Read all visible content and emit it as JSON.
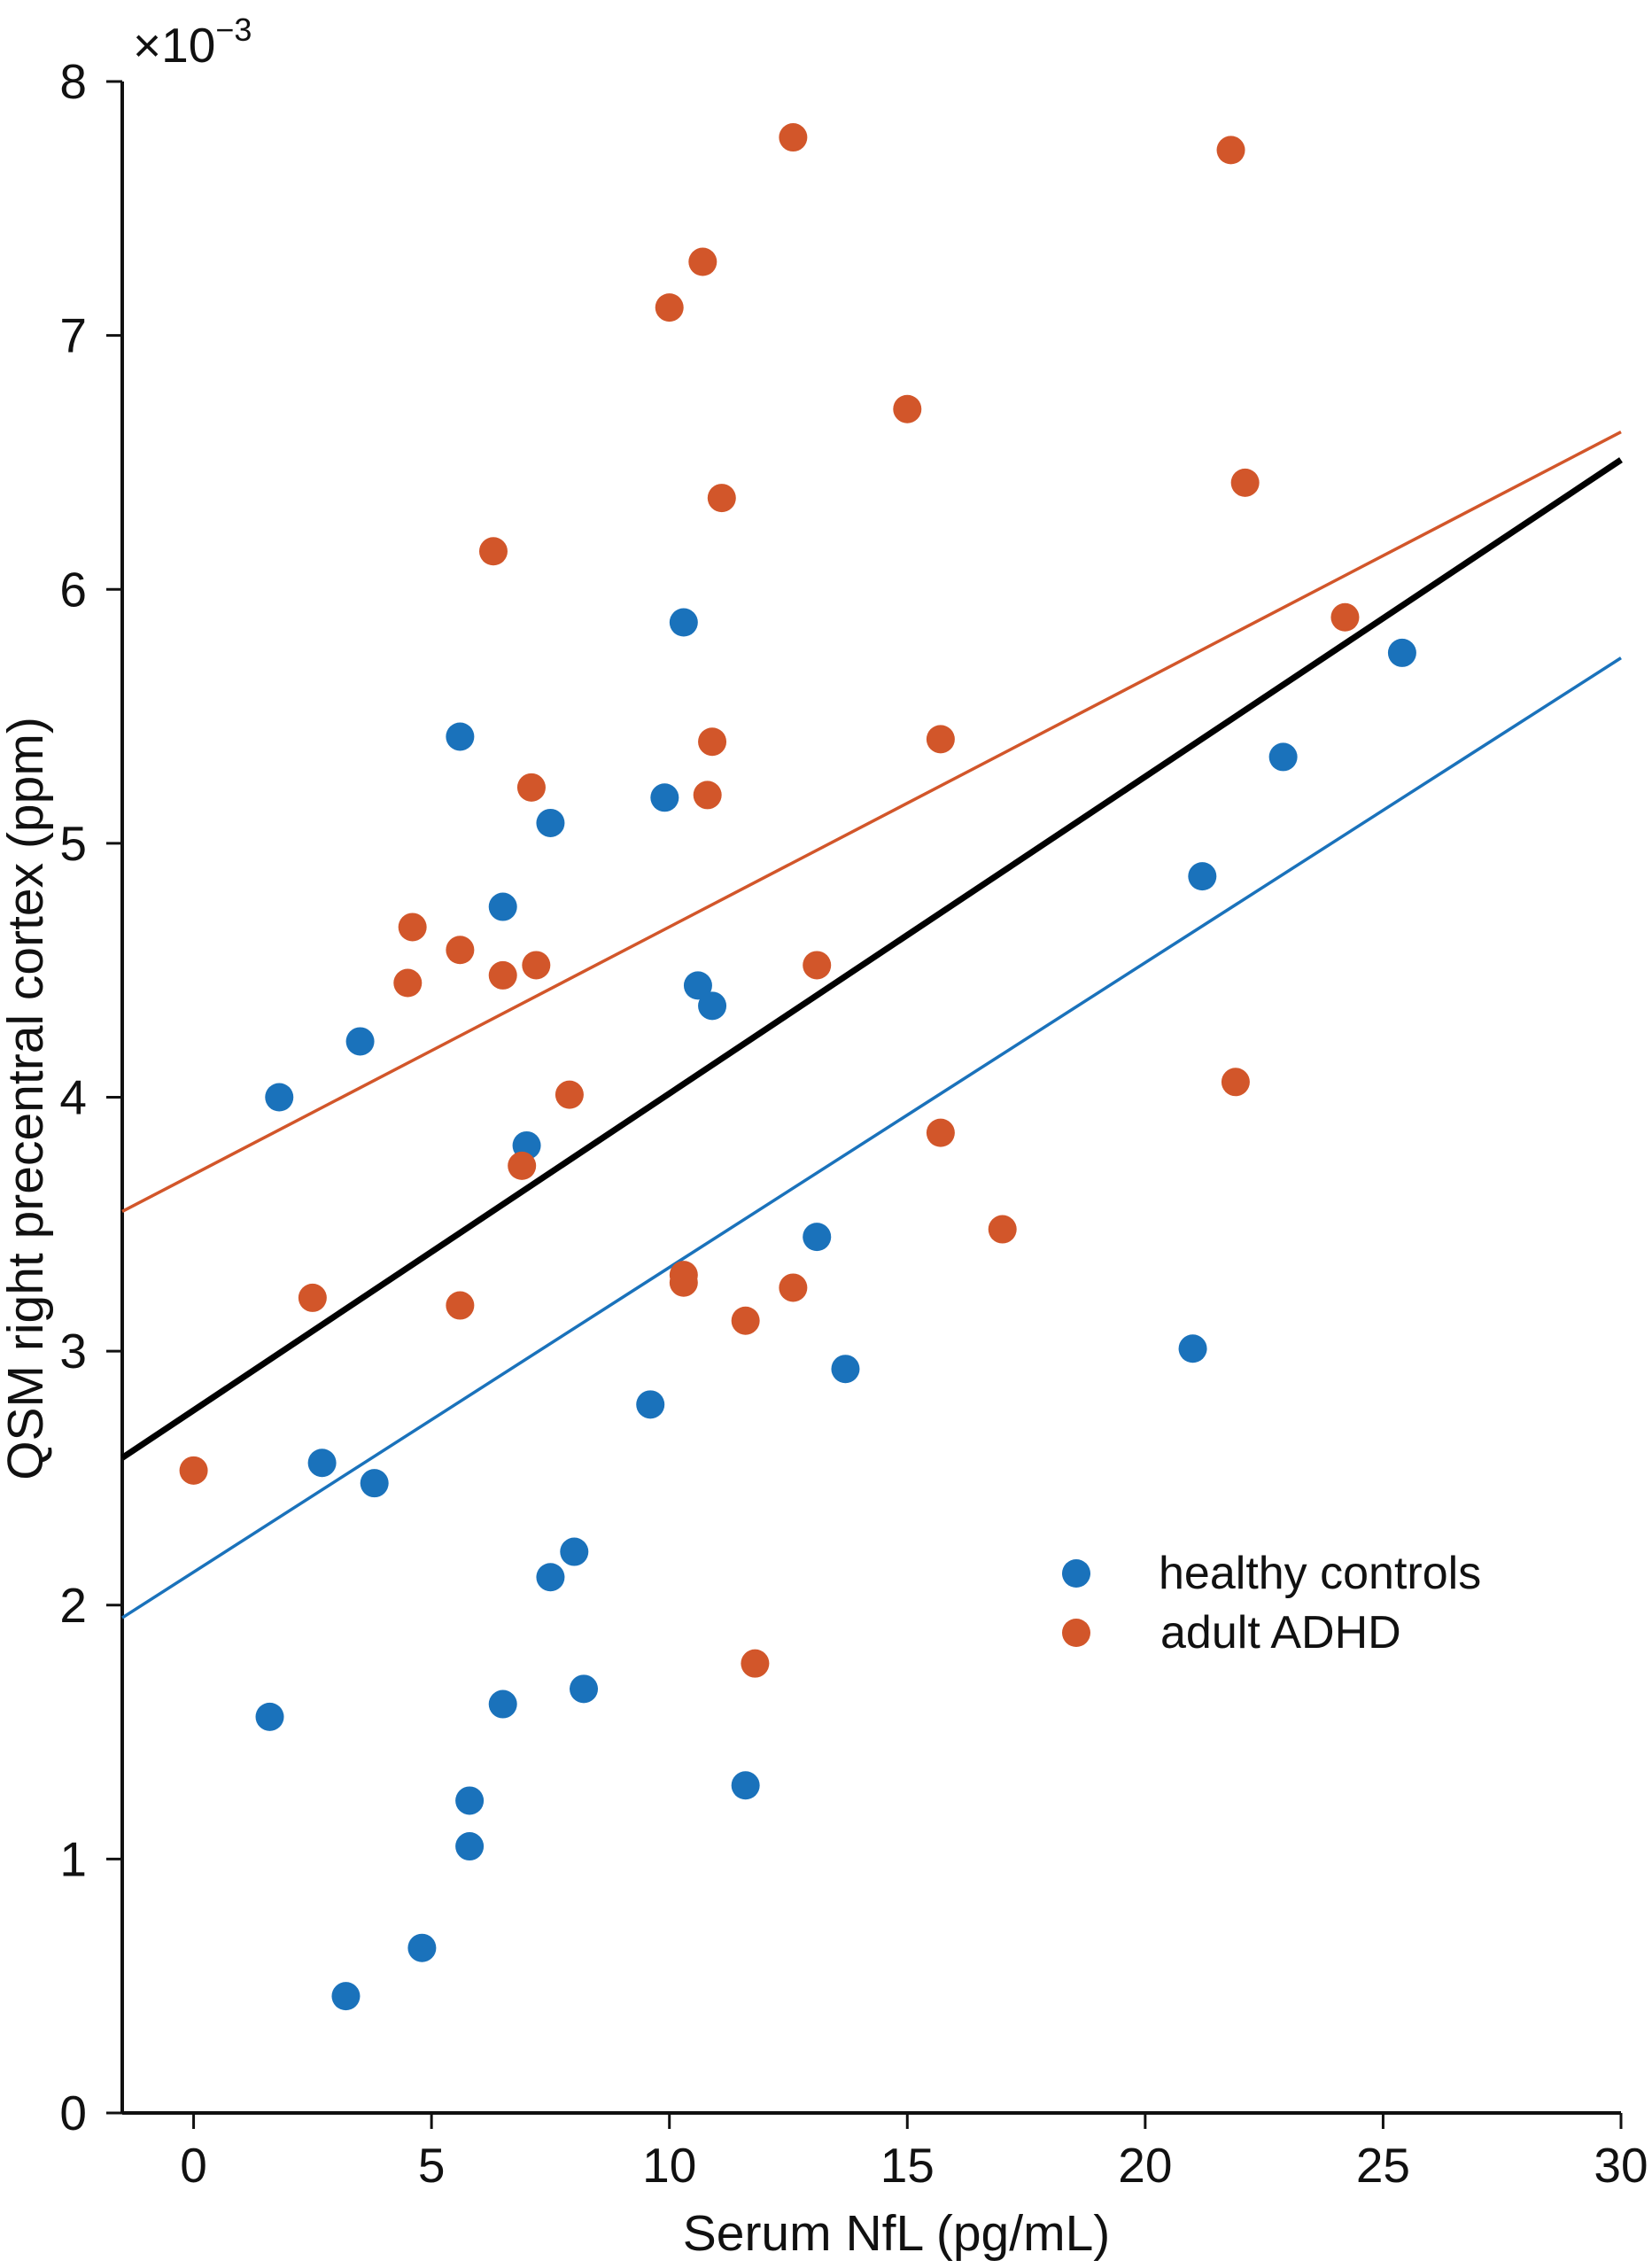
{
  "chart_data": {
    "type": "scatter",
    "xlabel": "Serum NfL (pg/mL)",
    "ylabel": "QSM right precentral cortex (ppm)",
    "y_multiplier": {
      "base": "×10",
      "exponent": "−3"
    },
    "xlim": [
      -1.5,
      30
    ],
    "ylim": [
      0,
      8
    ],
    "x_ticks": [
      0,
      5,
      10,
      15,
      20,
      25,
      30
    ],
    "x_tick_labels": [
      "0",
      "5",
      "10",
      "15",
      "20",
      "25",
      "30"
    ],
    "y_ticks": [
      0,
      1,
      2,
      3,
      4,
      5,
      6,
      7,
      8
    ],
    "y_tick_labels": [
      "0",
      "1",
      "2",
      "3",
      "4",
      "5",
      "6",
      "7",
      "8"
    ],
    "legend_position": "lower-right",
    "series": [
      {
        "name": "healthy controls",
        "color": "#1a72bb",
        "x": [
          1.8,
          3.5,
          5.6,
          7.5,
          6.5,
          9.9,
          10.3,
          10.6,
          10.9,
          7.0,
          2.7,
          3.8,
          13.1,
          13.7,
          9.6,
          7.5,
          8.0,
          1.6,
          6.5,
          8.2,
          5.8,
          5.8,
          4.8,
          3.2,
          11.6,
          21.0,
          21.2,
          22.9,
          25.4
        ],
        "y": [
          4.0,
          4.22,
          5.42,
          5.08,
          4.75,
          5.18,
          5.87,
          4.44,
          4.36,
          3.81,
          2.56,
          2.48,
          3.45,
          2.93,
          2.79,
          2.11,
          2.21,
          1.56,
          1.61,
          1.67,
          1.23,
          1.05,
          0.65,
          0.46,
          1.29,
          3.01,
          4.87,
          5.34,
          5.75
        ],
        "fit": {
          "x": [
            -1.5,
            30
          ],
          "y": [
            1.95,
            5.73
          ]
        }
      },
      {
        "name": "adult ADHD",
        "color": "#d2562a",
        "x": [
          0.0,
          2.5,
          4.5,
          4.6,
          5.6,
          5.6,
          6.3,
          6.5,
          6.9,
          7.1,
          7.2,
          7.9,
          10.0,
          10.3,
          10.3,
          10.7,
          10.8,
          10.9,
          11.1,
          11.6,
          11.8,
          12.6,
          12.6,
          13.1,
          15.0,
          15.7,
          15.7,
          17.0,
          21.8,
          21.9,
          22.1,
          24.2
        ],
        "y": [
          2.53,
          3.21,
          4.45,
          4.67,
          4.58,
          3.18,
          6.15,
          4.48,
          3.73,
          5.22,
          4.52,
          4.01,
          7.11,
          3.3,
          3.27,
          7.29,
          5.19,
          5.4,
          6.36,
          3.12,
          1.77,
          7.78,
          3.25,
          4.52,
          6.71,
          5.41,
          3.86,
          3.48,
          7.73,
          4.06,
          6.42,
          5.89
        ],
        "fit": {
          "x": [
            -1.5,
            30
          ],
          "y": [
            3.55,
            6.62
          ]
        }
      }
    ],
    "overall_fit": {
      "color": "#000000",
      "x": [
        -1.5,
        30
      ],
      "y": [
        2.58,
        6.51
      ]
    }
  }
}
